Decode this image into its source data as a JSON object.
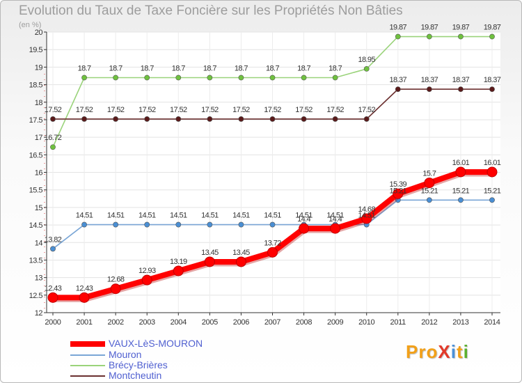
{
  "title": "Evolution du Taux de Taxe Foncière sur les Propriétés Non Bâties",
  "unit": "(en %)",
  "logo": {
    "text": "ProXiti",
    "colors": [
      "#f2a019",
      "#f2a019",
      "#f2a019",
      "#e23a2a",
      "#4a90d9",
      "#f2a019",
      "#5bb030"
    ]
  },
  "chart_data": {
    "type": "line",
    "title": "Evolution du Taux de Taxe Foncière sur les Propriétés Non Bâties",
    "ylabel": "(en %)",
    "xlabel": "",
    "x": [
      "2000",
      "2001",
      "2002",
      "2003",
      "2004",
      "2005",
      "2006",
      "2007",
      "2008",
      "2009",
      "2010",
      "2011",
      "2012",
      "2013",
      "2014"
    ],
    "ylim": [
      12,
      20
    ],
    "yticks": [
      "12",
      "12.5",
      "13",
      "13.5",
      "14",
      "14.5",
      "15",
      "15.5",
      "16",
      "16.5",
      "17",
      "17.5",
      "18",
      "18.5",
      "19",
      "19.5",
      "20"
    ],
    "legend_position": "bottom-left",
    "series": [
      {
        "name": "VAUX-LèS-MOURON",
        "color": "#ff0000",
        "emphasis": true,
        "values": [
          12.43,
          12.43,
          12.68,
          12.93,
          13.19,
          13.45,
          13.45,
          13.72,
          14.4,
          14.4,
          14.68,
          15.39,
          15.7,
          16.01,
          16.01
        ],
        "labels": [
          "12.43",
          "12.43",
          "12.68",
          "12.93",
          "13.19",
          "13.45",
          "13.45",
          "13.72",
          "14.4",
          "14.4",
          "14.68",
          "15.39",
          "15.7",
          "16.01",
          "16.01"
        ]
      },
      {
        "name": "Mouron",
        "color": "#7aa6d6",
        "marker": "#4a8fd4",
        "values": [
          13.82,
          14.51,
          14.51,
          14.51,
          14.51,
          14.51,
          14.51,
          14.51,
          14.51,
          14.51,
          14.51,
          15.21,
          15.21,
          15.21,
          15.21
        ],
        "labels": [
          "13.82",
          "14.51",
          "14.51",
          "14.51",
          "14.51",
          "14.51",
          "14.51",
          "14.51",
          "14.51",
          "14.51",
          "14.51",
          "15.21",
          "15.21",
          "15.21",
          "15.21"
        ]
      },
      {
        "name": "Brécy-Brières",
        "color": "#9ad37a",
        "marker": "#6fc13f",
        "values": [
          16.72,
          18.7,
          18.7,
          18.7,
          18.7,
          18.7,
          18.7,
          18.7,
          18.7,
          18.7,
          18.95,
          19.87,
          19.87,
          19.87,
          19.87
        ],
        "labels": [
          "16.72",
          "18.7",
          "18.7",
          "18.7",
          "18.7",
          "18.7",
          "18.7",
          "18.7",
          "18.7",
          "18.7",
          "18.95",
          "19.87",
          "19.87",
          "19.87",
          "19.87"
        ]
      },
      {
        "name": "Montcheutin",
        "color": "#6b2f2f",
        "marker": "#5a1a1a",
        "values": [
          17.52,
          17.52,
          17.52,
          17.52,
          17.52,
          17.52,
          17.52,
          17.52,
          17.52,
          17.52,
          17.52,
          18.37,
          18.37,
          18.37,
          18.37
        ],
        "labels": [
          "17.52",
          "17.52",
          "17.52",
          "17.52",
          "17.52",
          "17.52",
          "17.52",
          "17.52",
          "17.52",
          "17.52",
          "17.52",
          "18.37",
          "18.37",
          "18.37",
          "18.37"
        ]
      }
    ]
  }
}
